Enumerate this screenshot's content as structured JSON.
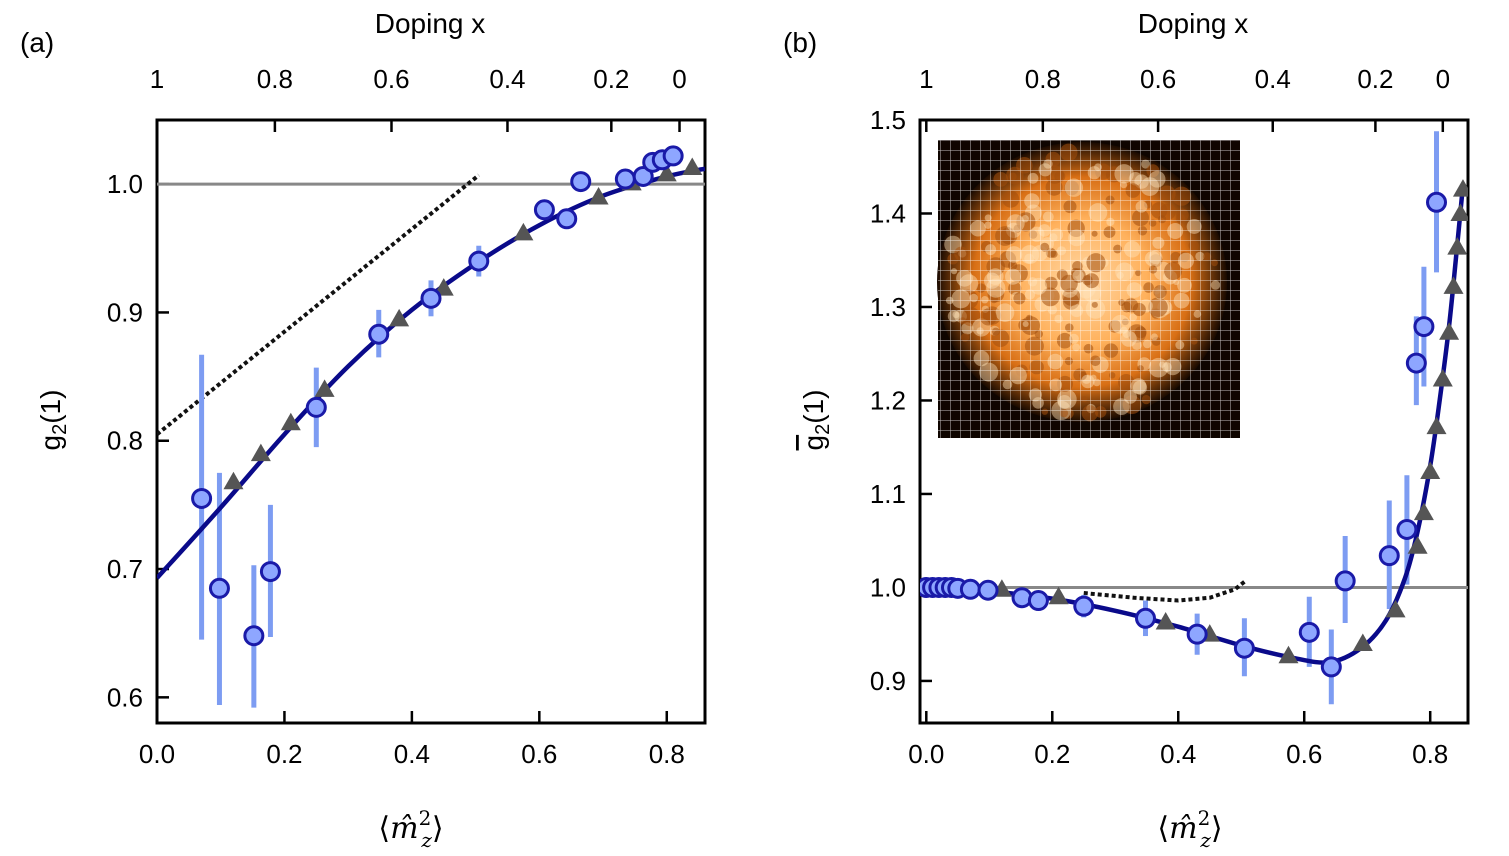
{
  "chart_data": [
    {
      "type": "scatter",
      "panel_label": "(a)",
      "xlabel": "⟨m̂z²⟩",
      "ylabel": "g2(1)",
      "top_xlabel": "Doping x",
      "xlim": [
        0,
        0.86
      ],
      "ylim": [
        0.58,
        1.05
      ],
      "xticks": [
        "0.0",
        "0.2",
        "0.4",
        "0.6",
        "0.8"
      ],
      "yticks": [
        "0.6",
        "0.7",
        "0.8",
        "0.9",
        "1.0"
      ],
      "top_ticks": [
        {
          "label": "1",
          "x": 0.0
        },
        {
          "label": "0.8",
          "x": 0.185
        },
        {
          "label": "0.6",
          "x": 0.368
        },
        {
          "label": "0.4",
          "x": 0.55
        },
        {
          "label": "0.2",
          "x": 0.713
        },
        {
          "label": "0",
          "x": 0.82
        }
      ],
      "reference_line": 1.0,
      "series": [
        {
          "kind": "circles_with_errorbars",
          "points": [
            {
              "x": 0.07,
              "y": 0.755,
              "lo": 0.645,
              "hi": 0.867
            },
            {
              "x": 0.098,
              "y": 0.685,
              "lo": 0.594,
              "hi": 0.775
            },
            {
              "x": 0.152,
              "y": 0.648,
              "lo": 0.592,
              "hi": 0.703
            },
            {
              "x": 0.178,
              "y": 0.698,
              "lo": 0.647,
              "hi": 0.75
            },
            {
              "x": 0.25,
              "y": 0.826,
              "lo": 0.795,
              "hi": 0.857
            },
            {
              "x": 0.348,
              "y": 0.883,
              "lo": 0.865,
              "hi": 0.902
            },
            {
              "x": 0.43,
              "y": 0.911,
              "lo": 0.897,
              "hi": 0.925
            },
            {
              "x": 0.505,
              "y": 0.94,
              "lo": 0.928,
              "hi": 0.952
            },
            {
              "x": 0.608,
              "y": 0.98
            },
            {
              "x": 0.643,
              "y": 0.973
            },
            {
              "x": 0.665,
              "y": 1.002
            },
            {
              "x": 0.735,
              "y": 1.004
            },
            {
              "x": 0.763,
              "y": 1.006
            },
            {
              "x": 0.778,
              "y": 1.017
            },
            {
              "x": 0.793,
              "y": 1.019
            },
            {
              "x": 0.81,
              "y": 1.022
            }
          ]
        },
        {
          "kind": "triangles",
          "points": [
            {
              "x": 0.12,
              "y": 0.768
            },
            {
              "x": 0.163,
              "y": 0.79
            },
            {
              "x": 0.21,
              "y": 0.814
            },
            {
              "x": 0.263,
              "y": 0.84
            },
            {
              "x": 0.38,
              "y": 0.895
            },
            {
              "x": 0.45,
              "y": 0.919
            },
            {
              "x": 0.575,
              "y": 0.962
            },
            {
              "x": 0.693,
              "y": 0.99
            },
            {
              "x": 0.745,
              "y": 1.001
            },
            {
              "x": 0.8,
              "y": 1.008
            },
            {
              "x": 0.84,
              "y": 1.013
            }
          ]
        },
        {
          "kind": "fit_line",
          "points": [
            {
              "x": 0.0,
              "y": 0.693
            },
            {
              "x": 0.1,
              "y": 0.748
            },
            {
              "x": 0.2,
              "y": 0.805
            },
            {
              "x": 0.3,
              "y": 0.858
            },
            {
              "x": 0.4,
              "y": 0.902
            },
            {
              "x": 0.5,
              "y": 0.938
            },
            {
              "x": 0.6,
              "y": 0.968
            },
            {
              "x": 0.7,
              "y": 0.991
            },
            {
              "x": 0.8,
              "y": 1.006
            },
            {
              "x": 0.86,
              "y": 1.012
            }
          ]
        },
        {
          "kind": "dotted_line",
          "points": [
            {
              "x": 0.0,
              "y": 0.805
            },
            {
              "x": 0.505,
              "y": 1.007
            }
          ]
        }
      ]
    },
    {
      "type": "scatter",
      "panel_label": "(b)",
      "xlabel": "⟨m̂z²⟩",
      "ylabel": "g̅2(1)",
      "top_xlabel": "Doping x",
      "xlim": [
        -0.01,
        0.86
      ],
      "ylim": [
        0.855,
        1.5
      ],
      "xticks": [
        "0.0",
        "0.2",
        "0.4",
        "0.6",
        "0.8"
      ],
      "yticks": [
        "0.9",
        "1.0",
        "1.1",
        "1.2",
        "1.3",
        "1.4",
        "1.5"
      ],
      "top_ticks": [
        {
          "label": "1",
          "x": 0.0
        },
        {
          "label": "0.8",
          "x": 0.185
        },
        {
          "label": "0.6",
          "x": 0.368
        },
        {
          "label": "0.4",
          "x": 0.55
        },
        {
          "label": "0.2",
          "x": 0.713
        },
        {
          "label": "0",
          "x": 0.82
        }
      ],
      "reference_line": 1.0,
      "series": [
        {
          "kind": "circles_with_errorbars",
          "points": [
            {
              "x": 0.0,
              "y": 1.0
            },
            {
              "x": 0.01,
              "y": 1.0
            },
            {
              "x": 0.02,
              "y": 1.0
            },
            {
              "x": 0.03,
              "y": 1.0
            },
            {
              "x": 0.04,
              "y": 1.0
            },
            {
              "x": 0.05,
              "y": 0.999
            },
            {
              "x": 0.07,
              "y": 0.998
            },
            {
              "x": 0.098,
              "y": 0.997
            },
            {
              "x": 0.152,
              "y": 0.989
            },
            {
              "x": 0.178,
              "y": 0.986
            },
            {
              "x": 0.25,
              "y": 0.98,
              "lo": 0.968,
              "hi": 0.992
            },
            {
              "x": 0.348,
              "y": 0.967,
              "lo": 0.948,
              "hi": 0.986
            },
            {
              "x": 0.43,
              "y": 0.95,
              "lo": 0.928,
              "hi": 0.972
            },
            {
              "x": 0.505,
              "y": 0.935,
              "lo": 0.905,
              "hi": 0.967
            },
            {
              "x": 0.608,
              "y": 0.952,
              "lo": 0.915,
              "hi": 0.99
            },
            {
              "x": 0.643,
              "y": 0.915,
              "lo": 0.875,
              "hi": 0.955
            },
            {
              "x": 0.665,
              "y": 1.007,
              "lo": 0.962,
              "hi": 1.055
            },
            {
              "x": 0.735,
              "y": 1.034,
              "lo": 0.977,
              "hi": 1.093
            },
            {
              "x": 0.763,
              "y": 1.062,
              "lo": 1.003,
              "hi": 1.12
            },
            {
              "x": 0.778,
              "y": 1.24,
              "lo": 1.195,
              "hi": 1.29
            },
            {
              "x": 0.79,
              "y": 1.279,
              "lo": 1.215,
              "hi": 1.343
            },
            {
              "x": 0.81,
              "y": 1.412,
              "lo": 1.337,
              "hi": 1.488
            }
          ]
        },
        {
          "kind": "triangles",
          "points": [
            {
              "x": 0.12,
              "y": 0.998
            },
            {
              "x": 0.21,
              "y": 0.99
            },
            {
              "x": 0.38,
              "y": 0.963
            },
            {
              "x": 0.45,
              "y": 0.95
            },
            {
              "x": 0.575,
              "y": 0.927
            },
            {
              "x": 0.693,
              "y": 0.94
            },
            {
              "x": 0.745,
              "y": 0.976
            },
            {
              "x": 0.78,
              "y": 1.044
            },
            {
              "x": 0.79,
              "y": 1.08
            },
            {
              "x": 0.8,
              "y": 1.124
            },
            {
              "x": 0.81,
              "y": 1.172
            },
            {
              "x": 0.82,
              "y": 1.223
            },
            {
              "x": 0.83,
              "y": 1.273
            },
            {
              "x": 0.837,
              "y": 1.322
            },
            {
              "x": 0.843,
              "y": 1.364
            },
            {
              "x": 0.848,
              "y": 1.4
            },
            {
              "x": 0.852,
              "y": 1.426
            }
          ]
        },
        {
          "kind": "fit_line",
          "points": [
            {
              "x": 0.0,
              "y": 1.0
            },
            {
              "x": 0.1,
              "y": 0.996
            },
            {
              "x": 0.2,
              "y": 0.988
            },
            {
              "x": 0.3,
              "y": 0.975
            },
            {
              "x": 0.4,
              "y": 0.958
            },
            {
              "x": 0.5,
              "y": 0.938
            },
            {
              "x": 0.58,
              "y": 0.925
            },
            {
              "x": 0.64,
              "y": 0.92
            },
            {
              "x": 0.69,
              "y": 0.935
            },
            {
              "x": 0.73,
              "y": 0.965
            },
            {
              "x": 0.76,
              "y": 1.01
            },
            {
              "x": 0.78,
              "y": 1.06
            },
            {
              "x": 0.8,
              "y": 1.13
            },
            {
              "x": 0.815,
              "y": 1.2
            },
            {
              "x": 0.83,
              "y": 1.28
            },
            {
              "x": 0.842,
              "y": 1.36
            },
            {
              "x": 0.852,
              "y": 1.43
            }
          ]
        },
        {
          "kind": "dotted_line",
          "points": [
            {
              "x": 0.25,
              "y": 0.994
            },
            {
              "x": 0.33,
              "y": 0.989
            },
            {
              "x": 0.4,
              "y": 0.986
            },
            {
              "x": 0.45,
              "y": 0.989
            },
            {
              "x": 0.49,
              "y": 0.998
            },
            {
              "x": 0.505,
              "y": 1.006
            }
          ]
        }
      ],
      "inset": {
        "kind": "image",
        "description_color": "#ff9a3c"
      }
    }
  ],
  "colors": {
    "circle_fill": "#8ea6ff",
    "circle_stroke": "#1a1aa8",
    "errorbar": "#7d9cf2",
    "fit_line": "#0a0a8a",
    "triangle": "#555555",
    "reference_line": "#888888",
    "dotted_line": "#111111"
  }
}
